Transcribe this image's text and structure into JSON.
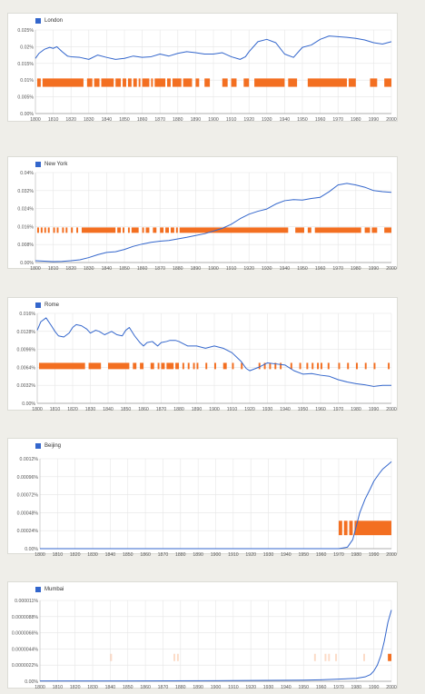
{
  "colors": {
    "line": "#3366cc",
    "band": "#f36f21",
    "grid": "#e6e6e6"
  },
  "chart_data": [
    {
      "type": "line",
      "title": "",
      "xlabel": "",
      "ylabel": "",
      "legend": "London",
      "xlim": [
        1800,
        2000
      ],
      "ylim": [
        0,
        0.025
      ],
      "yticks": [
        0,
        0.005,
        0.01,
        0.015,
        0.02,
        0.025
      ],
      "yticklabels": [
        "0.00%",
        "0.005%",
        "0.01%",
        "0.015%",
        "0.02%",
        "0.025%"
      ],
      "xticks": [
        1800,
        1810,
        1820,
        1830,
        1840,
        1850,
        1860,
        1870,
        1880,
        1890,
        1900,
        1910,
        1920,
        1930,
        1940,
        1950,
        1960,
        1970,
        1980,
        1990,
        2000
      ],
      "series": [
        {
          "x": [
            1800,
            1802,
            1805,
            1808,
            1810,
            1812,
            1815,
            1818,
            1820,
            1825,
            1830,
            1835,
            1840,
            1845,
            1850,
            1855,
            1860,
            1865,
            1870,
            1875,
            1880,
            1885,
            1890,
            1895,
            1900,
            1905,
            1910,
            1915,
            1918,
            1920,
            1925,
            1930,
            1935,
            1940,
            1945,
            1950,
            1955,
            1960,
            1965,
            1970,
            1975,
            1980,
            1985,
            1990,
            1995,
            2000
          ],
          "y": [
            0.0165,
            0.018,
            0.0192,
            0.0198,
            0.0195,
            0.02,
            0.0185,
            0.0172,
            0.017,
            0.0168,
            0.0162,
            0.0175,
            0.0168,
            0.0162,
            0.0165,
            0.0172,
            0.0168,
            0.017,
            0.0178,
            0.0172,
            0.018,
            0.0185,
            0.0182,
            0.0178,
            0.0178,
            0.0182,
            0.017,
            0.0162,
            0.017,
            0.0185,
            0.0215,
            0.0222,
            0.0212,
            0.0178,
            0.0168,
            0.0198,
            0.0205,
            0.0222,
            0.0232,
            0.023,
            0.0228,
            0.0225,
            0.022,
            0.0212,
            0.0208,
            0.0215
          ]
        }
      ],
      "bands": [
        [
          1801,
          1803
        ],
        [
          1804,
          1827
        ],
        [
          1829,
          1832
        ],
        [
          1833,
          1836
        ],
        [
          1837,
          1844
        ],
        [
          1845,
          1848
        ],
        [
          1849,
          1851
        ],
        [
          1852,
          1854
        ],
        [
          1855,
          1857
        ],
        [
          1858,
          1859
        ],
        [
          1860,
          1864
        ],
        [
          1865,
          1866
        ],
        [
          1867,
          1873
        ],
        [
          1874,
          1876
        ],
        [
          1877,
          1882
        ],
        [
          1883,
          1888
        ],
        [
          1890,
          1892
        ],
        [
          1895,
          1898
        ],
        [
          1905,
          1908
        ],
        [
          1910,
          1913
        ],
        [
          1917,
          1920
        ],
        [
          1923,
          1940
        ],
        [
          1942,
          1947
        ],
        [
          1953,
          1975
        ],
        [
          1976,
          1980
        ],
        [
          1988,
          1992
        ],
        [
          1996,
          2000
        ]
      ]
    },
    {
      "type": "line",
      "title": "",
      "xlabel": "",
      "ylabel": "",
      "legend": "New York",
      "xlim": [
        1800,
        2000
      ],
      "ylim": [
        0,
        0.04
      ],
      "yticks": [
        0,
        0.008,
        0.016,
        0.024,
        0.032,
        0.04
      ],
      "yticklabels": [
        "0.00%",
        "0.008%",
        "0.016%",
        "0.024%",
        "0.032%",
        "0.04%"
      ],
      "xticks": [
        1800,
        1810,
        1820,
        1830,
        1840,
        1850,
        1860,
        1870,
        1880,
        1890,
        1900,
        1910,
        1920,
        1930,
        1940,
        1950,
        1960,
        1970,
        1980,
        1990,
        2000
      ],
      "series": [
        {
          "x": [
            1800,
            1805,
            1810,
            1815,
            1820,
            1825,
            1830,
            1835,
            1840,
            1845,
            1850,
            1855,
            1860,
            1865,
            1870,
            1875,
            1880,
            1885,
            1890,
            1895,
            1900,
            1905,
            1910,
            1915,
            1920,
            1925,
            1930,
            1935,
            1940,
            1945,
            1950,
            1955,
            1960,
            1965,
            1970,
            1975,
            1980,
            1985,
            1990,
            1995,
            2000
          ],
          "y": [
            0.0008,
            0.0006,
            0.0004,
            0.0005,
            0.0008,
            0.0012,
            0.0022,
            0.0035,
            0.0045,
            0.0048,
            0.0058,
            0.0072,
            0.0082,
            0.009,
            0.0095,
            0.0098,
            0.0105,
            0.0112,
            0.012,
            0.0128,
            0.014,
            0.0152,
            0.017,
            0.0195,
            0.0215,
            0.0228,
            0.0238,
            0.026,
            0.0275,
            0.028,
            0.0278,
            0.0285,
            0.029,
            0.0315,
            0.0345,
            0.0352,
            0.0345,
            0.0335,
            0.032,
            0.0315,
            0.0312
          ]
        }
      ],
      "bands": [
        [
          1801,
          1802
        ],
        [
          1803,
          1804
        ],
        [
          1805,
          1806
        ],
        [
          1807,
          1808
        ],
        [
          1810,
          1811
        ],
        [
          1812,
          1813
        ],
        [
          1815,
          1816
        ],
        [
          1817,
          1818
        ],
        [
          1820,
          1821
        ],
        [
          1823,
          1824
        ],
        [
          1826,
          1845
        ],
        [
          1846,
          1848
        ],
        [
          1849,
          1850
        ],
        [
          1852,
          1853
        ],
        [
          1854,
          1858
        ],
        [
          1860,
          1861
        ],
        [
          1862,
          1864
        ],
        [
          1866,
          1868
        ],
        [
          1870,
          1872
        ],
        [
          1873,
          1875
        ],
        [
          1876,
          1878
        ],
        [
          1879,
          1880
        ],
        [
          1881,
          1942
        ],
        [
          1946,
          1951
        ],
        [
          1953,
          1955
        ],
        [
          1957,
          1983
        ],
        [
          1985,
          1988
        ],
        [
          1989,
          1992
        ],
        [
          1996,
          2000
        ]
      ]
    },
    {
      "type": "line",
      "title": "",
      "xlabel": "",
      "ylabel": "",
      "legend": "Rome",
      "xlim": [
        1800,
        2000
      ],
      "ylim": [
        0,
        0.016
      ],
      "yticks": [
        0,
        0.0032,
        0.0064,
        0.0096,
        0.0128,
        0.016
      ],
      "yticklabels": [
        "0.00%",
        "0.0032%",
        "0.0064%",
        "0.0096%",
        "0.0128%",
        "0.016%"
      ],
      "xticks": [
        1800,
        1810,
        1820,
        1830,
        1840,
        1850,
        1860,
        1870,
        1880,
        1890,
        1900,
        1910,
        1920,
        1930,
        1940,
        1950,
        1960,
        1970,
        1980,
        1990,
        2000
      ],
      "series": [
        {
          "x": [
            1800,
            1802,
            1805,
            1808,
            1810,
            1812,
            1815,
            1818,
            1820,
            1822,
            1825,
            1828,
            1830,
            1833,
            1835,
            1838,
            1840,
            1842,
            1845,
            1848,
            1850,
            1852,
            1855,
            1858,
            1860,
            1862,
            1865,
            1868,
            1870,
            1873,
            1875,
            1878,
            1880,
            1885,
            1890,
            1895,
            1900,
            1905,
            1910,
            1915,
            1918,
            1920,
            1925,
            1930,
            1935,
            1940,
            1945,
            1950,
            1955,
            1960,
            1965,
            1970,
            1975,
            1980,
            1985,
            1990,
            1995,
            2000
          ],
          "y": [
            0.013,
            0.0145,
            0.0152,
            0.0138,
            0.0128,
            0.012,
            0.0118,
            0.0125,
            0.0135,
            0.014,
            0.0138,
            0.0132,
            0.0125,
            0.013,
            0.0128,
            0.0122,
            0.0125,
            0.0128,
            0.0122,
            0.012,
            0.013,
            0.0135,
            0.012,
            0.0108,
            0.0102,
            0.0108,
            0.011,
            0.0102,
            0.0108,
            0.011,
            0.0112,
            0.0112,
            0.011,
            0.0102,
            0.0102,
            0.0098,
            0.0102,
            0.0098,
            0.009,
            0.0075,
            0.0062,
            0.0058,
            0.0064,
            0.0072,
            0.007,
            0.0068,
            0.0058,
            0.0052,
            0.0053,
            0.005,
            0.0048,
            0.0042,
            0.0038,
            0.0035,
            0.0033,
            0.003,
            0.0032,
            0.0032
          ]
        }
      ],
      "bands": [
        [
          1801,
          1827
        ],
        [
          1829,
          1836
        ],
        [
          1840,
          1852
        ],
        [
          1854,
          1856
        ],
        [
          1858,
          1860
        ],
        [
          1864,
          1866
        ],
        [
          1868,
          1869
        ],
        [
          1870,
          1872
        ],
        [
          1873,
          1877
        ],
        [
          1878,
          1880
        ],
        [
          1882,
          1883
        ],
        [
          1885,
          1886
        ],
        [
          1888,
          1889
        ],
        [
          1890,
          1891
        ],
        [
          1895,
          1896
        ],
        [
          1900,
          1901
        ],
        [
          1905,
          1907
        ],
        [
          1910,
          1911
        ],
        [
          1915,
          1916
        ],
        [
          1925,
          1926
        ],
        [
          1928,
          1929
        ],
        [
          1931,
          1932
        ],
        [
          1934,
          1935
        ],
        [
          1937,
          1938
        ],
        [
          1943,
          1944
        ],
        [
          1948,
          1949
        ],
        [
          1952,
          1953
        ],
        [
          1955,
          1956
        ],
        [
          1958,
          1959
        ],
        [
          1960,
          1961
        ],
        [
          1964,
          1965
        ],
        [
          1970,
          1971
        ],
        [
          1975,
          1976
        ],
        [
          1980,
          1981
        ],
        [
          1985,
          1986
        ],
        [
          1990,
          1991
        ],
        [
          1998,
          1999
        ]
      ]
    },
    {
      "type": "line",
      "title": "",
      "xlabel": "",
      "ylabel": "",
      "legend": "Beijing",
      "xlim": [
        1800,
        2000
      ],
      "ylim": [
        0,
        0.0012
      ],
      "yticks": [
        0,
        0.00024,
        0.00048,
        0.00072,
        0.00096,
        0.0012
      ],
      "yticklabels": [
        "0.00%",
        "0.00024%",
        "0.00048%",
        "0.00072%",
        "0.00096%",
        "0.0012%"
      ],
      "xticks": [
        1800,
        1810,
        1820,
        1830,
        1840,
        1850,
        1860,
        1870,
        1880,
        1890,
        1900,
        1910,
        1920,
        1930,
        1940,
        1950,
        1960,
        1970,
        1980,
        1990,
        2000
      ],
      "series": [
        {
          "x": [
            1800,
            1850,
            1900,
            1950,
            1970,
            1975,
            1978,
            1980,
            1982,
            1985,
            1988,
            1990,
            1993,
            1995,
            1998,
            2000
          ],
          "y": [
            0,
            0,
            0,
            0,
            0,
            2e-05,
            0.00012,
            0.0003,
            0.00048,
            0.00066,
            0.0008,
            0.0009,
            0.001,
            0.00106,
            0.00112,
            0.00116
          ]
        }
      ],
      "bands": [
        [
          1970,
          1972
        ],
        [
          1973,
          1975
        ],
        [
          1976,
          1978
        ],
        [
          1979,
          2000
        ]
      ]
    },
    {
      "type": "line",
      "title": "",
      "xlabel": "",
      "ylabel": "",
      "legend": "Mumbai",
      "xlim": [
        1800,
        2000
      ],
      "ylim": [
        0,
        1.1e-05
      ],
      "yticks": [
        0,
        2.2e-06,
        4.4e-06,
        6.6e-06,
        8.8e-06,
        1.1e-05
      ],
      "yticklabels": [
        "0.00%",
        "0.0000022%",
        "0.0000044%",
        "0.0000066%",
        "0.0000088%",
        "0.000011%"
      ],
      "xticks": [
        1800,
        1810,
        1820,
        1830,
        1840,
        1850,
        1860,
        1870,
        1880,
        1890,
        1900,
        1910,
        1920,
        1930,
        1940,
        1950,
        1960,
        1970,
        1980,
        1990,
        2000
      ],
      "series": [
        {
          "x": [
            1800,
            1850,
            1900,
            1950,
            1960,
            1970,
            1980,
            1985,
            1988,
            1990,
            1992,
            1994,
            1996,
            1998,
            2000
          ],
          "y": [
            4e-08,
            4e-08,
            8e-08,
            1.5e-07,
            2e-07,
            3e-07,
            4e-07,
            6e-07,
            9e-07,
            1.4e-06,
            2.2e-06,
            3.5e-06,
            5.5e-06,
            8e-06,
            9.7e-06
          ]
        }
      ],
      "bands": [
        [
          1998,
          2000
        ]
      ],
      "faint_bands": [
        [
          1840,
          1841
        ],
        [
          1876,
          1877
        ],
        [
          1878,
          1879
        ],
        [
          1956,
          1957
        ],
        [
          1962,
          1963
        ],
        [
          1964,
          1965
        ],
        [
          1968,
          1969
        ],
        [
          1984,
          1985
        ]
      ]
    }
  ]
}
